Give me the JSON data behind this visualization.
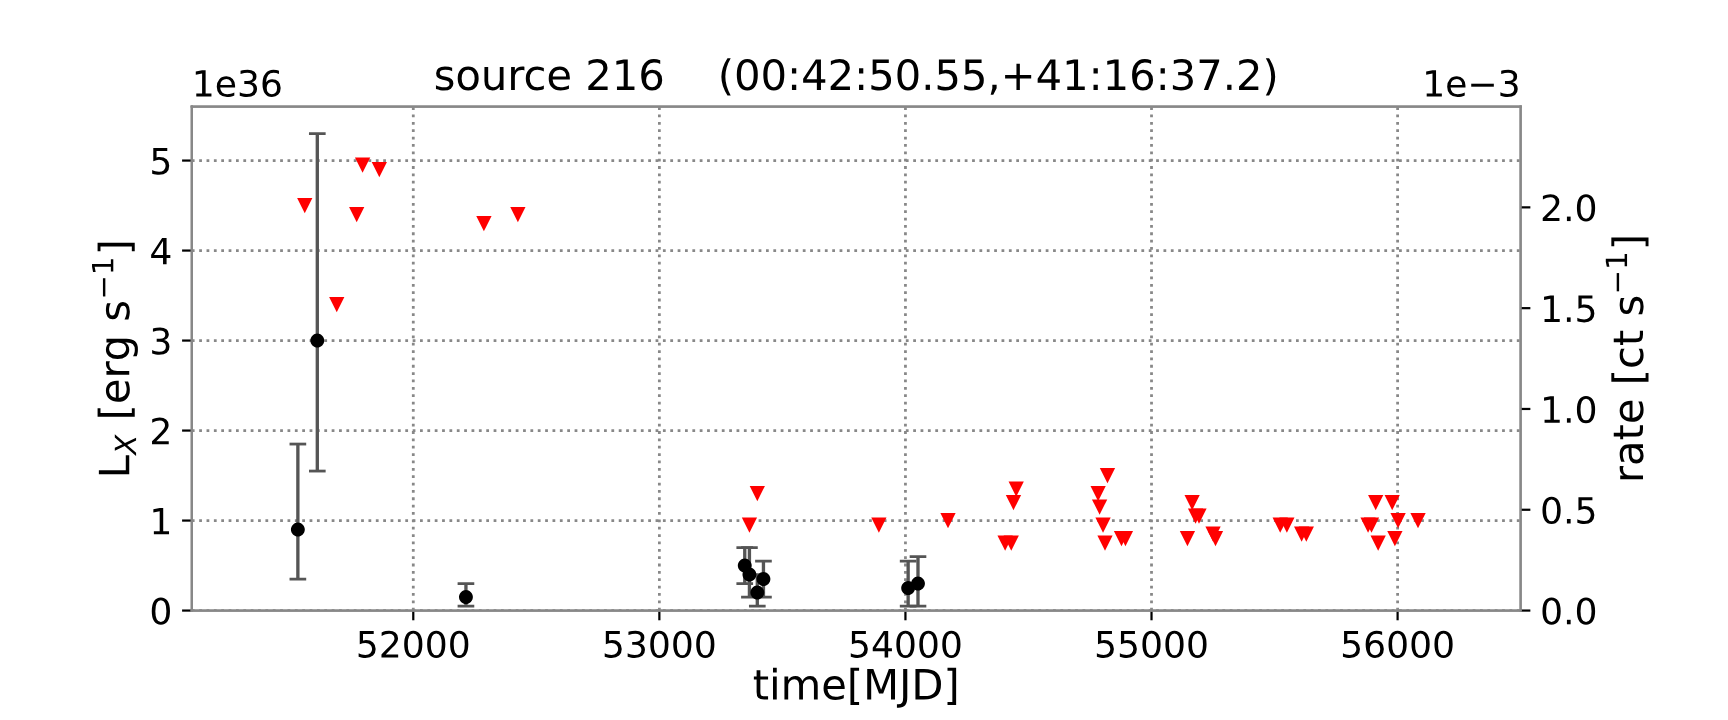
{
  "chart_data": {
    "type": "scatter",
    "title": "source 216    (00:42:50.55,+41:16:37.2)",
    "xlabel": "time[MJD]",
    "ylabel": "L$_{X}$ [erg s$^{−1}$]",
    "y2label": "rate [ct s$^{−1}$]",
    "annotations": [
      "1e36",
      "1e−3"
    ],
    "xlim": [
      51100,
      56500
    ],
    "xticks": [
      52000,
      53000,
      54000,
      55000,
      56000
    ],
    "ylim": [
      0,
      5.6
    ],
    "yticks": [
      0,
      1,
      2,
      3,
      4,
      5
    ],
    "y2lim": [
      0,
      2.5
    ],
    "y2ticks": [
      {
        "value": 0,
        "label": "0.0"
      },
      0.5,
      {
        "value": 1,
        "label": "1.0"
      },
      1.5,
      {
        "value": 2,
        "label": "2.0"
      }
    ],
    "grid": true,
    "series": [
      {
        "color": "#000000",
        "marker": "circle",
        "x": [
          51531,
          51610,
          52214,
          53347,
          53366,
          53398,
          53423,
          54011,
          54051
        ],
        "values": [
          0.9,
          3.0,
          0.15,
          0.5,
          0.4,
          0.2,
          0.35,
          0.25,
          0.3
        ],
        "errors": [
          [
            0.35,
            1.85
          ],
          [
            1.55,
            5.3
          ],
          [
            0.05,
            0.3
          ],
          [
            0.3,
            0.7
          ],
          [
            0.15,
            0.7
          ],
          [
            0.05,
            0.4
          ],
          [
            0.15,
            0.55
          ],
          [
            0.05,
            0.55
          ],
          [
            0.05,
            0.6
          ]
        ]
      },
      {
        "color": "#ff0000",
        "marker": "triangle",
        "x": [
          51559,
          51689,
          51770,
          51794,
          51862,
          52287,
          52425,
          53366,
          53398,
          53892,
          54173,
          54405,
          54430,
          54439,
          54450,
          54783,
          54789,
          54803,
          54811,
          54821,
          54878,
          54894,
          55146,
          55165,
          55179,
          55193,
          55250,
          55260,
          55523,
          55550,
          55610,
          55629,
          55880,
          55894,
          55911,
          55921,
          55978,
          55989,
          56002,
          56083
        ],
        "values": [
          4.5,
          3.4,
          4.4,
          4.95,
          4.9,
          4.3,
          4.4,
          0.95,
          1.3,
          0.95,
          1.0,
          0.75,
          0.75,
          1.2,
          1.35,
          1.3,
          1.15,
          0.95,
          0.75,
          1.5,
          0.8,
          0.8,
          0.8,
          1.2,
          1.05,
          1.05,
          0.85,
          0.8,
          0.95,
          0.95,
          0.85,
          0.85,
          0.95,
          0.95,
          1.2,
          0.75,
          1.2,
          0.8,
          1.0,
          1.0
        ]
      }
    ]
  }
}
